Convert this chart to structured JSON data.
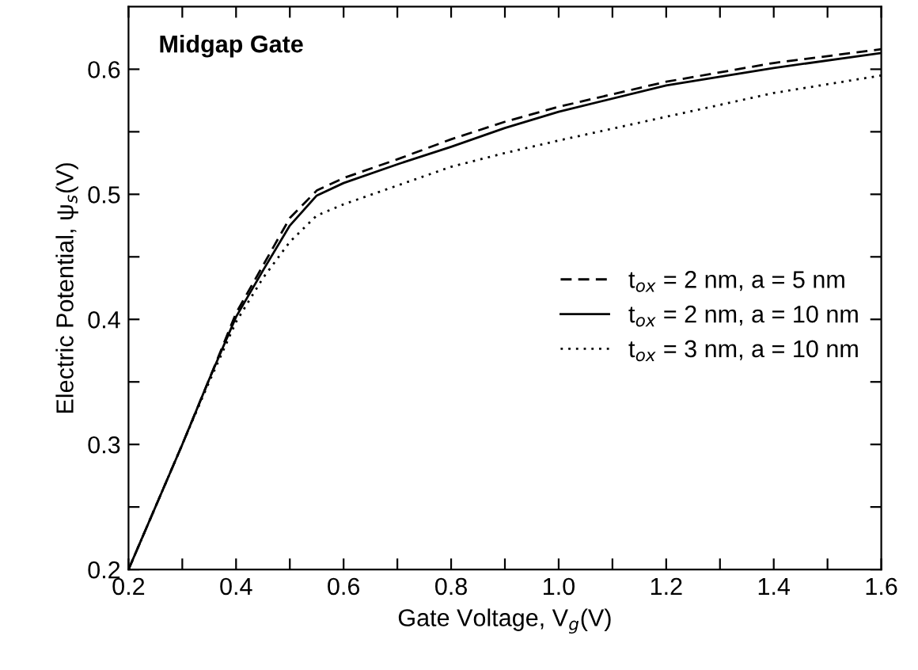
{
  "chart_data": {
    "type": "line",
    "xlabel": "Gate Voltage, V$_{g}$(V)",
    "ylabel": "Electric Potential, ψ$_{s}$(V)",
    "annotations": [
      "Midgap Gate"
    ],
    "x": [
      0.2,
      0.3,
      0.35,
      0.4,
      0.45,
      0.5,
      0.55,
      0.6,
      0.7,
      0.8,
      0.9,
      1.0,
      1.2,
      1.4,
      1.6
    ],
    "series": [
      {
        "name": "t$_{ox}$ = 2 nm, a = 5 nm",
        "color": "#000000",
        "line_style": "dashed",
        "values": [
          0.2,
          0.3,
          0.352,
          0.405,
          0.443,
          0.481,
          0.503,
          0.513,
          0.528,
          0.544,
          0.558,
          0.57,
          0.59,
          0.605,
          0.616
        ]
      },
      {
        "name": "t$_{ox}$ = 2 nm, a = 10 nm",
        "color": "#000000",
        "line_style": "solid",
        "values": [
          0.2,
          0.3,
          0.352,
          0.402,
          0.439,
          0.475,
          0.499,
          0.509,
          0.524,
          0.538,
          0.553,
          0.566,
          0.587,
          0.601,
          0.613
        ]
      },
      {
        "name": "t$_{ox}$ = 3 nm, a = 10 nm",
        "color": "#000000",
        "line_style": "dotted",
        "values": [
          0.2,
          0.3,
          0.35,
          0.398,
          0.433,
          0.462,
          0.483,
          0.492,
          0.507,
          0.522,
          0.533,
          0.543,
          0.562,
          0.581,
          0.595
        ]
      }
    ],
    "xlim": [
      0.2,
      1.6
    ],
    "xticks": [
      0.2,
      {
        "value": 0.3,
        "label": null
      },
      0.4,
      {
        "value": 0.5,
        "label": null
      },
      0.6,
      {
        "value": 0.7,
        "label": null
      },
      0.8,
      {
        "value": 0.9,
        "label": null
      },
      {
        "value": 1.0,
        "label": "1.0"
      },
      {
        "value": 1.1,
        "label": null
      },
      1.2,
      {
        "value": 1.3,
        "label": null
      },
      1.4,
      {
        "value": 1.5,
        "label": null
      },
      1.6
    ],
    "ylim": [
      0.2,
      0.65
    ],
    "yticks": [
      0.2,
      {
        "value": 0.25,
        "label": null
      },
      0.3,
      {
        "value": 0.35,
        "label": null
      },
      0.4,
      {
        "value": 0.45,
        "label": null
      },
      0.5,
      {
        "value": 0.55,
        "label": null
      },
      0.6
    ],
    "legend": "right",
    "grid": false
  }
}
